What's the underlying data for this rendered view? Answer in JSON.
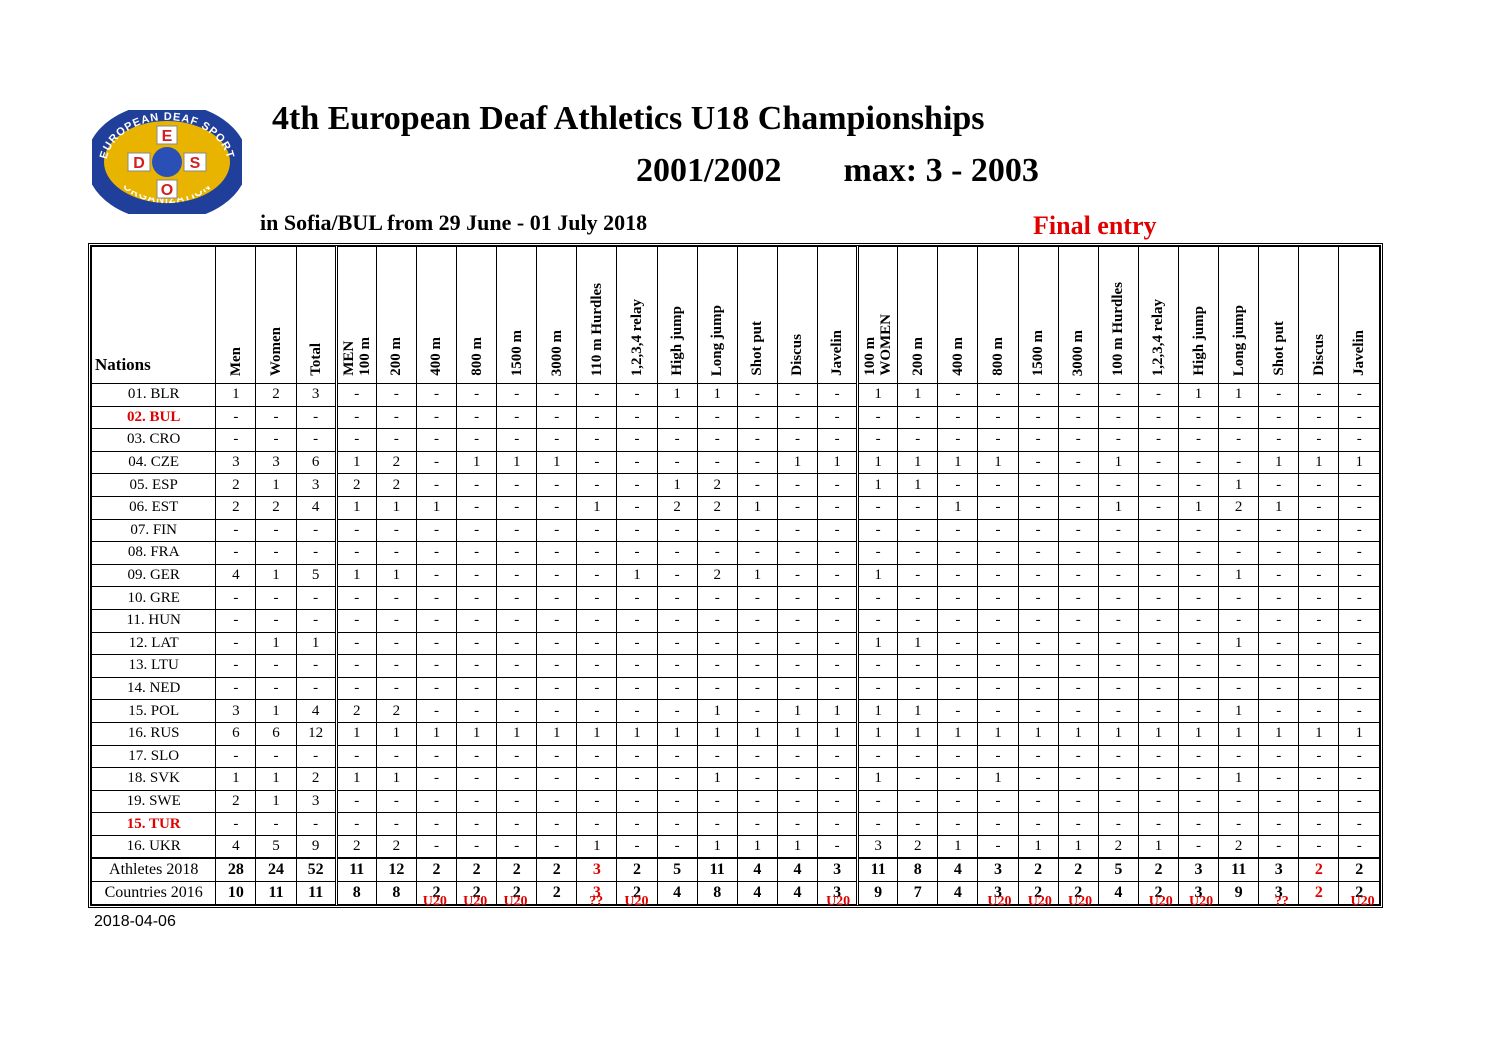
{
  "logo": {
    "icon": "edso-logo",
    "ring_text": "EUROPEAN DEAF SPORT ORGANIZATION",
    "letters": [
      "E",
      "D",
      "S",
      "O"
    ],
    "colors": {
      "ring": "#1f3f9a",
      "inner": "#e8b400",
      "letters": "#d21f1f"
    }
  },
  "header": {
    "title": "4th European Deaf Athletics U18 Championships",
    "years": "2001/2002",
    "max": "max: 3 - 2003",
    "subtitle": "in Sofia/BUL from 29 June  - 01 July 2018",
    "status": "Final entry"
  },
  "table": {
    "nations_header": "Nations",
    "columns": [
      "Men",
      "Women",
      "Total",
      "MEN\n100 m",
      "200 m",
      "400 m",
      "800 m",
      "1500 m",
      "3000 m",
      "110 m Hurdles",
      "1,2,3,4 relay",
      "High jump",
      "Long jump",
      "Shot put",
      "Discus",
      "Javelin",
      "100 m\nWOMEN",
      "200 m",
      "400 m",
      "800 m",
      "1500 m",
      "3000 m",
      "100 m Hurdles",
      "1,2,3,4 relay",
      "High jump",
      "Long jump",
      "Shot put",
      "Discus",
      "Javelin"
    ],
    "rows": [
      {
        "nation": "01. BLR",
        "highlight": false,
        "cells": [
          "1",
          "2",
          "3",
          "-",
          "-",
          "-",
          "-",
          "-",
          "-",
          "-",
          "-",
          "1",
          "1",
          "-",
          "-",
          "-",
          "1",
          "1",
          "-",
          "-",
          "-",
          "-",
          "-",
          "-",
          "1",
          "1",
          "-",
          "-",
          "-"
        ]
      },
      {
        "nation": "02. BUL",
        "highlight": true,
        "cells": [
          "-",
          "-",
          "-",
          "-",
          "-",
          "-",
          "-",
          "-",
          "-",
          "-",
          "-",
          "-",
          "-",
          "-",
          "-",
          "-",
          "-",
          "-",
          "-",
          "-",
          "-",
          "-",
          "-",
          "-",
          "-",
          "-",
          "-",
          "-",
          "-"
        ]
      },
      {
        "nation": "03. CRO",
        "highlight": false,
        "cells": [
          "-",
          "-",
          "-",
          "-",
          "-",
          "-",
          "-",
          "-",
          "-",
          "-",
          "-",
          "-",
          "-",
          "-",
          "-",
          "-",
          "-",
          "-",
          "-",
          "-",
          "-",
          "-",
          "-",
          "-",
          "-",
          "-",
          "-",
          "-",
          "-"
        ]
      },
      {
        "nation": "04. CZE",
        "highlight": false,
        "cells": [
          "3",
          "3",
          "6",
          "1",
          "2",
          "-",
          "1",
          "1",
          "1",
          "-",
          "-",
          "-",
          "-",
          "-",
          "1",
          "1",
          "1",
          "1",
          "1",
          "1",
          "-",
          "-",
          "1",
          "-",
          "-",
          "-",
          "1",
          "1",
          "1"
        ]
      },
      {
        "nation": "05. ESP",
        "highlight": false,
        "cells": [
          "2",
          "1",
          "3",
          "2",
          "2",
          "-",
          "-",
          "-",
          "-",
          "-",
          "-",
          "1",
          "2",
          "-",
          "-",
          "-",
          "1",
          "1",
          "-",
          "-",
          "-",
          "-",
          "-",
          "-",
          "-",
          "1",
          "-",
          "-",
          "-"
        ]
      },
      {
        "nation": "06. EST",
        "highlight": false,
        "cells": [
          "2",
          "2",
          "4",
          "1",
          "1",
          "1",
          "-",
          "-",
          "-",
          "1",
          "-",
          "2",
          "2",
          "1",
          "-",
          "-",
          "-",
          "-",
          "1",
          "-",
          "-",
          "-",
          "1",
          "-",
          "1",
          "2",
          "1",
          "-",
          "-"
        ]
      },
      {
        "nation": "07. FIN",
        "highlight": false,
        "cells": [
          "-",
          "-",
          "-",
          "-",
          "-",
          "-",
          "-",
          "-",
          "-",
          "-",
          "-",
          "-",
          "-",
          "-",
          "-",
          "-",
          "-",
          "-",
          "-",
          "-",
          "-",
          "-",
          "-",
          "-",
          "-",
          "-",
          "-",
          "-",
          "-"
        ]
      },
      {
        "nation": "08. FRA",
        "highlight": false,
        "cells": [
          "-",
          "-",
          "-",
          "-",
          "-",
          "-",
          "-",
          "-",
          "-",
          "-",
          "-",
          "-",
          "-",
          "-",
          "-",
          "-",
          "-",
          "-",
          "-",
          "-",
          "-",
          "-",
          "-",
          "-",
          "-",
          "-",
          "-",
          "-",
          "-"
        ]
      },
      {
        "nation": "09. GER",
        "highlight": false,
        "cells": [
          "4",
          "1",
          "5",
          "1",
          "1",
          "-",
          "-",
          "-",
          "-",
          "-",
          "1",
          "-",
          "2",
          "1",
          "-",
          "-",
          "1",
          "-",
          "-",
          "-",
          "-",
          "-",
          "-",
          "-",
          "-",
          "1",
          "-",
          "-",
          "-"
        ]
      },
      {
        "nation": "10. GRE",
        "highlight": false,
        "cells": [
          "-",
          "-",
          "-",
          "-",
          "-",
          "-",
          "-",
          "-",
          "-",
          "-",
          "-",
          "-",
          "-",
          "-",
          "-",
          "-",
          "-",
          "-",
          "-",
          "-",
          "-",
          "-",
          "-",
          "-",
          "-",
          "-",
          "-",
          "-",
          "-"
        ]
      },
      {
        "nation": "11. HUN",
        "highlight": false,
        "cells": [
          "-",
          "-",
          "-",
          "-",
          "-",
          "-",
          "-",
          "-",
          "-",
          "-",
          "-",
          "-",
          "-",
          "-",
          "-",
          "-",
          "-",
          "-",
          "-",
          "-",
          "-",
          "-",
          "-",
          "-",
          "-",
          "-",
          "-",
          "-",
          "-"
        ]
      },
      {
        "nation": "12. LAT",
        "highlight": false,
        "cells": [
          "-",
          "1",
          "1",
          "-",
          "-",
          "-",
          "-",
          "-",
          "-",
          "-",
          "-",
          "-",
          "-",
          "-",
          "-",
          "-",
          "1",
          "1",
          "-",
          "-",
          "-",
          "-",
          "-",
          "-",
          "-",
          "1",
          "-",
          "-",
          "-"
        ]
      },
      {
        "nation": "13. LTU",
        "highlight": false,
        "cells": [
          "-",
          "-",
          "-",
          "-",
          "-",
          "-",
          "-",
          "-",
          "-",
          "-",
          "-",
          "-",
          "-",
          "-",
          "-",
          "-",
          "-",
          "-",
          "-",
          "-",
          "-",
          "-",
          "-",
          "-",
          "-",
          "-",
          "-",
          "-",
          "-"
        ]
      },
      {
        "nation": "14. NED",
        "highlight": false,
        "cells": [
          "-",
          "-",
          "-",
          "-",
          "-",
          "-",
          "-",
          "-",
          "-",
          "-",
          "-",
          "-",
          "-",
          "-",
          "-",
          "-",
          "-",
          "-",
          "-",
          "-",
          "-",
          "-",
          "-",
          "-",
          "-",
          "-",
          "-",
          "-",
          "-"
        ]
      },
      {
        "nation": "15. POL",
        "highlight": false,
        "cells": [
          "3",
          "1",
          "4",
          "2",
          "2",
          "-",
          "-",
          "-",
          "-",
          "-",
          "-",
          "-",
          "1",
          "-",
          "1",
          "1",
          "1",
          "1",
          "-",
          "-",
          "-",
          "-",
          "-",
          "-",
          "-",
          "1",
          "-",
          "-",
          "-"
        ]
      },
      {
        "nation": "16. RUS",
        "highlight": false,
        "cells": [
          "6",
          "6",
          "12",
          "1",
          "1",
          "1",
          "1",
          "1",
          "1",
          "1",
          "1",
          "1",
          "1",
          "1",
          "1",
          "1",
          "1",
          "1",
          "1",
          "1",
          "1",
          "1",
          "1",
          "1",
          "1",
          "1",
          "1",
          "1",
          "1"
        ]
      },
      {
        "nation": "17. SLO",
        "highlight": false,
        "cells": [
          "-",
          "-",
          "-",
          "-",
          "-",
          "-",
          "-",
          "-",
          "-",
          "-",
          "-",
          "-",
          "-",
          "-",
          "-",
          "-",
          "-",
          "-",
          "-",
          "-",
          "-",
          "-",
          "-",
          "-",
          "-",
          "-",
          "-",
          "-",
          "-"
        ]
      },
      {
        "nation": "18. SVK",
        "highlight": false,
        "cells": [
          "1",
          "1",
          "2",
          "1",
          "1",
          "-",
          "-",
          "-",
          "-",
          "-",
          "-",
          "-",
          "1",
          "-",
          "-",
          "-",
          "1",
          "-",
          "-",
          "1",
          "-",
          "-",
          "-",
          "-",
          "-",
          "1",
          "-",
          "-",
          "-"
        ]
      },
      {
        "nation": "19. SWE",
        "highlight": false,
        "cells": [
          "2",
          "1",
          "3",
          "-",
          "-",
          "-",
          "-",
          "-",
          "-",
          "-",
          "-",
          "-",
          "-",
          "-",
          "-",
          "-",
          "-",
          "-",
          "-",
          "-",
          "-",
          "-",
          "-",
          "-",
          "-",
          "-",
          "-",
          "-",
          "-"
        ]
      },
      {
        "nation": "15. TUR",
        "highlight": true,
        "cells": [
          "-",
          "-",
          "-",
          "-",
          "-",
          "-",
          "-",
          "-",
          "-",
          "-",
          "-",
          "-",
          "-",
          "-",
          "-",
          "-",
          "-",
          "-",
          "-",
          "-",
          "-",
          "-",
          "-",
          "-",
          "-",
          "-",
          "-",
          "-",
          "-"
        ]
      },
      {
        "nation": "16. UKR",
        "highlight": false,
        "cells": [
          "4",
          "5",
          "9",
          "2",
          "2",
          "-",
          "-",
          "-",
          "-",
          "1",
          "-",
          "-",
          "1",
          "1",
          "1",
          "-",
          "3",
          "2",
          "1",
          "-",
          "1",
          "1",
          "2",
          "1",
          "-",
          "2",
          "-",
          "-",
          "-"
        ]
      }
    ],
    "summary": [
      {
        "label": "Athletes 2018",
        "cells": [
          "28",
          "24",
          "52",
          "11",
          "12",
          "2",
          "2",
          "2",
          "2",
          "3",
          "2",
          "5",
          "11",
          "4",
          "4",
          "3",
          "11",
          "8",
          "4",
          "3",
          "2",
          "2",
          "5",
          "2",
          "3",
          "11",
          "3",
          "2",
          "2"
        ],
        "red": [
          9,
          27
        ]
      },
      {
        "label": "Countries 2016",
        "cells": [
          "10",
          "11",
          "11",
          "8",
          "8",
          "2",
          "2",
          "2",
          "2",
          "3",
          "2",
          "4",
          "8",
          "4",
          "4",
          "3",
          "9",
          "7",
          "4",
          "3",
          "2",
          "2",
          "4",
          "2",
          "3",
          "9",
          "3",
          "2",
          "2"
        ],
        "red": [
          9,
          27
        ]
      }
    ],
    "notes": [
      "",
      "",
      "",
      "",
      "",
      "U20",
      "U20",
      "U20",
      "",
      "??",
      "U20",
      "",
      "",
      "",
      "",
      "U20",
      "",
      "",
      "",
      "U20",
      "U20",
      "U20",
      "",
      "U20",
      "U20",
      "",
      "??",
      "",
      "U20"
    ]
  },
  "footer": {
    "date": "2018-04-06"
  }
}
